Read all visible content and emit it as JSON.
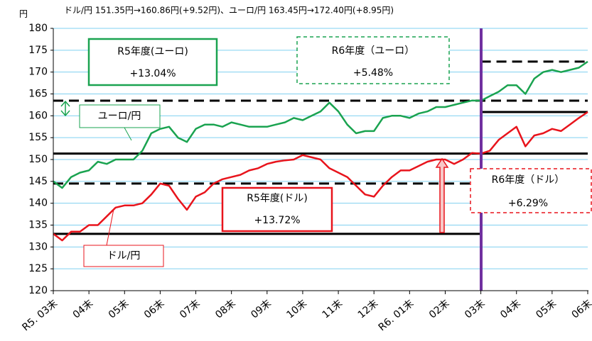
{
  "chart_data": {
    "type": "line",
    "title": "ドル/円 151.35円→160.86円(+9.52円)、ユーロ/円 163.45円→172.40円(+8.95円)",
    "y_unit": "円",
    "categories": [
      "R5. 03末",
      null,
      null,
      null,
      "04末",
      null,
      null,
      null,
      "05末",
      null,
      null,
      null,
      "06末",
      null,
      null,
      null,
      "07末",
      null,
      null,
      null,
      "08末",
      null,
      null,
      null,
      "09末",
      null,
      null,
      null,
      "10末",
      null,
      null,
      null,
      "11末",
      null,
      null,
      null,
      "12末",
      null,
      null,
      null,
      "R6. 01末",
      null,
      null,
      null,
      "02末",
      null,
      null,
      null,
      "03末",
      null,
      null,
      null,
      "04末",
      null,
      null,
      null,
      "05末",
      null,
      null,
      null,
      "06末"
    ],
    "series": [
      {
        "name": "ドル/円",
        "color": "#e8141c",
        "values": [
          133,
          131.5,
          133.5,
          133.5,
          135,
          135,
          137,
          139,
          139.5,
          139.5,
          140,
          142,
          144.5,
          144,
          141,
          138.5,
          141.5,
          142.5,
          144.5,
          145.5,
          146,
          146.5,
          147.5,
          148,
          149,
          149.5,
          149.8,
          150,
          151,
          150.5,
          150,
          148,
          147,
          146,
          144,
          142,
          141.5,
          144,
          146,
          147.5,
          147.5,
          148.5,
          149.5,
          150,
          150,
          149,
          150,
          151.5,
          151.35,
          152,
          154.5,
          156,
          157.5,
          153,
          155.5,
          156,
          157,
          156.5,
          158,
          159.5,
          160.86
        ]
      },
      {
        "name": "ユーロ/円",
        "color": "#1aa350",
        "values": [
          145,
          143.5,
          146,
          147,
          147.5,
          149.5,
          149,
          150,
          150,
          150,
          152,
          156,
          157,
          157.5,
          155,
          154,
          157,
          158,
          158,
          157.5,
          158.5,
          158,
          157.5,
          157.5,
          157.5,
          158,
          158.5,
          159.5,
          159,
          160,
          161,
          163,
          161,
          158,
          156,
          156.5,
          156.5,
          159.5,
          160,
          160,
          159.5,
          160.5,
          161,
          162,
          162,
          162.5,
          163,
          163.5,
          163.45,
          164.5,
          165.5,
          167,
          167,
          165,
          168.5,
          170,
          170.5,
          170,
          170.5,
          171,
          172.4
        ]
      }
    ],
    "reference_lines": [
      {
        "value": 133,
        "style": "solid"
      },
      {
        "value": 144.5,
        "style": "dashed"
      },
      {
        "value": 151.35,
        "style": "solid"
      },
      {
        "value": 163.45,
        "style": "dashed"
      },
      {
        "value": 160.86,
        "style": "solid"
      },
      {
        "value": 172.4,
        "style": "dashed"
      }
    ],
    "annotations": [
      {
        "label": "R5年度(ユーロ)",
        "change": "+13.04%"
      },
      {
        "label": "R6年度（ユーロ）",
        "change": "+5.48%"
      },
      {
        "label": "R5年度(ドル)",
        "change": "+13.72%"
      },
      {
        "label": "R6年度（ドル）",
        "change": "+6.29%"
      }
    ],
    "ylim": [
      120,
      180
    ],
    "yticks": [
      120,
      125,
      130,
      135,
      140,
      145,
      150,
      155,
      160,
      165,
      170,
      175,
      180
    ],
    "grid": true
  }
}
